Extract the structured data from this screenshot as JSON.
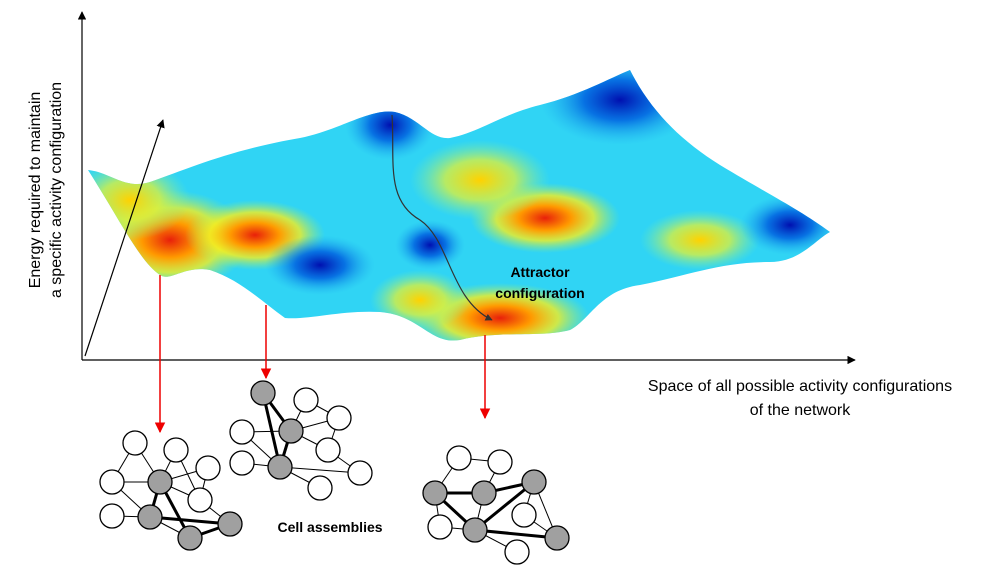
{
  "y_axis_label": [
    "Energy required to maintain",
    "a specific activity configuration"
  ],
  "x_axis_label": [
    "Space of all possible activity configurations",
    "of the network"
  ],
  "annotation": [
    "Attractor",
    "configuration"
  ],
  "caption": "Cell assemblies"
}
